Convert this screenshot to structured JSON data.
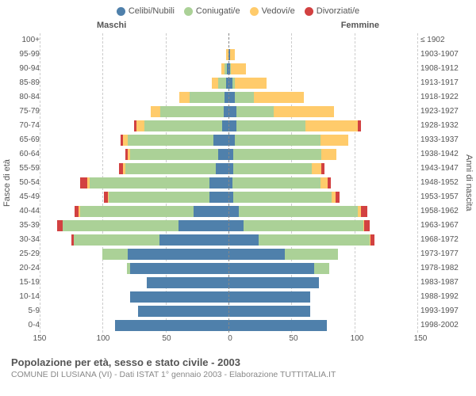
{
  "meta": {
    "title": "Popolazione per età, sesso e stato civile - 2003",
    "subtitle": "COMUNE DI LUSIANA (VI) - Dati ISTAT 1° gennaio 2003 - Elaborazione TUTTITALIA.IT",
    "gender_left": "Maschi",
    "gender_right": "Femmine",
    "yaxis_left": "Fasce di età",
    "yaxis_right": "Anni di nascita"
  },
  "legend": [
    {
      "label": "Celibi/Nubili",
      "color": "#4f80ab"
    },
    {
      "label": "Coniugati/e",
      "color": "#abd197"
    },
    {
      "label": "Vedovi/e",
      "color": "#ffcb6b"
    },
    {
      "label": "Divorziati/e",
      "color": "#d24141"
    }
  ],
  "colors": {
    "single": "#4f80ab",
    "married": "#abd197",
    "widowed": "#ffcb6b",
    "divorced": "#d24141",
    "grid": "#cccccc",
    "zero": "#888888",
    "bg": "#ffffff",
    "text": "#555555"
  },
  "axis": {
    "xmax": 150,
    "xticks": [
      150,
      100,
      50,
      0,
      50,
      100,
      150
    ]
  },
  "rows": [
    {
      "age": "100+",
      "birth": "≤ 1902",
      "m": {
        "s": 0,
        "c": 0,
        "w": 0,
        "d": 0
      },
      "f": {
        "s": 0,
        "c": 0,
        "w": 0,
        "d": 0
      }
    },
    {
      "age": "95-99",
      "birth": "1903-1907",
      "m": {
        "s": 0,
        "c": 0,
        "w": 2,
        "d": 0
      },
      "f": {
        "s": 1,
        "c": 0,
        "w": 4,
        "d": 0
      }
    },
    {
      "age": "90-94",
      "birth": "1908-1912",
      "m": {
        "s": 1,
        "c": 2,
        "w": 3,
        "d": 0
      },
      "f": {
        "s": 1,
        "c": 1,
        "w": 12,
        "d": 0
      }
    },
    {
      "age": "85-89",
      "birth": "1913-1917",
      "m": {
        "s": 2,
        "c": 6,
        "w": 5,
        "d": 0
      },
      "f": {
        "s": 3,
        "c": 2,
        "w": 25,
        "d": 0
      }
    },
    {
      "age": "80-84",
      "birth": "1918-1922",
      "m": {
        "s": 3,
        "c": 28,
        "w": 8,
        "d": 0
      },
      "f": {
        "s": 5,
        "c": 15,
        "w": 40,
        "d": 0
      }
    },
    {
      "age": "75-79",
      "birth": "1923-1927",
      "m": {
        "s": 4,
        "c": 50,
        "w": 8,
        "d": 0
      },
      "f": {
        "s": 6,
        "c": 30,
        "w": 48,
        "d": 0
      }
    },
    {
      "age": "70-74",
      "birth": "1928-1932",
      "m": {
        "s": 5,
        "c": 62,
        "w": 6,
        "d": 2
      },
      "f": {
        "s": 6,
        "c": 55,
        "w": 42,
        "d": 2
      }
    },
    {
      "age": "65-69",
      "birth": "1933-1937",
      "m": {
        "s": 12,
        "c": 68,
        "w": 4,
        "d": 2
      },
      "f": {
        "s": 5,
        "c": 68,
        "w": 22,
        "d": 0
      }
    },
    {
      "age": "60-64",
      "birth": "1938-1942",
      "m": {
        "s": 8,
        "c": 70,
        "w": 2,
        "d": 2
      },
      "f": {
        "s": 4,
        "c": 70,
        "w": 12,
        "d": 0
      }
    },
    {
      "age": "55-59",
      "birth": "1943-1947",
      "m": {
        "s": 10,
        "c": 72,
        "w": 2,
        "d": 3
      },
      "f": {
        "s": 4,
        "c": 62,
        "w": 8,
        "d": 2
      }
    },
    {
      "age": "50-54",
      "birth": "1948-1952",
      "m": {
        "s": 15,
        "c": 95,
        "w": 2,
        "d": 6
      },
      "f": {
        "s": 3,
        "c": 70,
        "w": 6,
        "d": 2
      }
    },
    {
      "age": "45-49",
      "birth": "1953-1957",
      "m": {
        "s": 15,
        "c": 80,
        "w": 1,
        "d": 3
      },
      "f": {
        "s": 4,
        "c": 78,
        "w": 3,
        "d": 3
      }
    },
    {
      "age": "40-44",
      "birth": "1958-1962",
      "m": {
        "s": 28,
        "c": 90,
        "w": 1,
        "d": 3
      },
      "f": {
        "s": 8,
        "c": 95,
        "w": 2,
        "d": 5
      }
    },
    {
      "age": "35-39",
      "birth": "1963-1967",
      "m": {
        "s": 40,
        "c": 92,
        "w": 0,
        "d": 4
      },
      "f": {
        "s": 12,
        "c": 95,
        "w": 1,
        "d": 4
      }
    },
    {
      "age": "30-34",
      "birth": "1968-1972",
      "m": {
        "s": 55,
        "c": 68,
        "w": 0,
        "d": 2
      },
      "f": {
        "s": 24,
        "c": 88,
        "w": 1,
        "d": 3
      }
    },
    {
      "age": "25-29",
      "birth": "1973-1977",
      "m": {
        "s": 80,
        "c": 20,
        "w": 0,
        "d": 0
      },
      "f": {
        "s": 45,
        "c": 42,
        "w": 0,
        "d": 0
      }
    },
    {
      "age": "20-24",
      "birth": "1978-1982",
      "m": {
        "s": 78,
        "c": 3,
        "w": 0,
        "d": 0
      },
      "f": {
        "s": 68,
        "c": 12,
        "w": 0,
        "d": 0
      }
    },
    {
      "age": "15-19",
      "birth": "1983-1987",
      "m": {
        "s": 65,
        "c": 0,
        "w": 0,
        "d": 0
      },
      "f": {
        "s": 72,
        "c": 0,
        "w": 0,
        "d": 0
      }
    },
    {
      "age": "10-14",
      "birth": "1988-1992",
      "m": {
        "s": 78,
        "c": 0,
        "w": 0,
        "d": 0
      },
      "f": {
        "s": 65,
        "c": 0,
        "w": 0,
        "d": 0
      }
    },
    {
      "age": "5-9",
      "birth": "1993-1997",
      "m": {
        "s": 72,
        "c": 0,
        "w": 0,
        "d": 0
      },
      "f": {
        "s": 65,
        "c": 0,
        "w": 0,
        "d": 0
      }
    },
    {
      "age": "0-4",
      "birth": "1998-2002",
      "m": {
        "s": 90,
        "c": 0,
        "w": 0,
        "d": 0
      },
      "f": {
        "s": 78,
        "c": 0,
        "w": 0,
        "d": 0
      }
    }
  ]
}
